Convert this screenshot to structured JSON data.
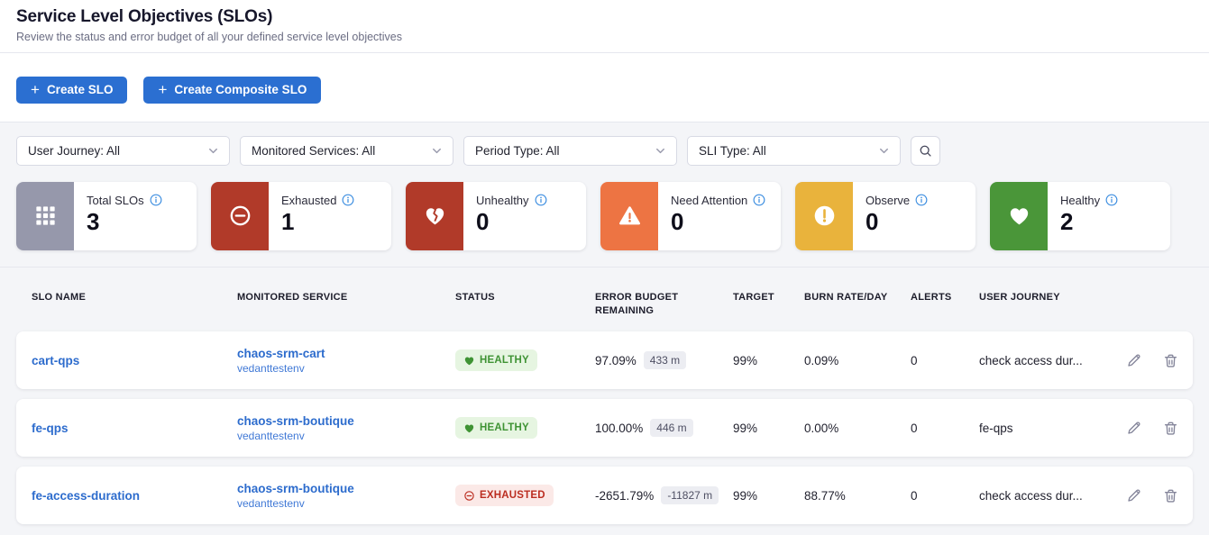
{
  "colors": {
    "primary_blue": "#2b6fd1",
    "link_blue": "#2d6ccd",
    "info_blue": "#3b8de0",
    "healthy_text": "#3f9334",
    "healthy_badge_bg": "#e6f5e1",
    "exhausted_text": "#bb2d20",
    "exhausted_badge_bg": "#fbe9e7",
    "content_bg": "#f4f5f8"
  },
  "header": {
    "title": "Service Level Objectives (SLOs)",
    "subtitle": "Review the status and error budget of all your defined service level objectives"
  },
  "toolbar": {
    "plus_glyph": "+",
    "create_slo_label": "Create SLO",
    "create_composite_slo_label": "Create Composite SLO"
  },
  "filters": [
    {
      "id": "user-journey",
      "label": "User Journey: All"
    },
    {
      "id": "monitored-services",
      "label": "Monitored Services: All"
    },
    {
      "id": "period-type",
      "label": "Period Type: All"
    },
    {
      "id": "sli-type",
      "label": "SLI Type: All"
    }
  ],
  "summary_cards": [
    {
      "id": "total-slos",
      "label": "Total SLOs",
      "value": "3",
      "icon": "grid-icon",
      "color": "#9698ab"
    },
    {
      "id": "exhausted",
      "label": "Exhausted",
      "value": "1",
      "icon": "minus-circle-icon",
      "color": "#b13a29"
    },
    {
      "id": "unhealthy",
      "label": "Unhealthy",
      "value": "0",
      "icon": "broken-heart-icon",
      "color": "#b13a29"
    },
    {
      "id": "need-attention",
      "label": "Need Attention",
      "value": "0",
      "icon": "warning-triangle-icon",
      "color": "#ed7443"
    },
    {
      "id": "observe",
      "label": "Observe",
      "value": "0",
      "icon": "exclamation-circle-icon",
      "color": "#e9b33c"
    },
    {
      "id": "healthy",
      "label": "Healthy",
      "value": "2",
      "icon": "heart-icon",
      "color": "#4a9639"
    }
  ],
  "table": {
    "columns": [
      {
        "id": "slo-name",
        "label": "SLO NAME"
      },
      {
        "id": "monitored-service",
        "label": "MONITORED SERVICE"
      },
      {
        "id": "status",
        "label": "STATUS"
      },
      {
        "id": "error-budget-remaining",
        "label": "ERROR BUDGET REMAINING"
      },
      {
        "id": "target",
        "label": "TARGET"
      },
      {
        "id": "burn-rate",
        "label": "BURN RATE/DAY"
      },
      {
        "id": "alerts",
        "label": "ALERTS"
      },
      {
        "id": "user-journey",
        "label": "USER JOURNEY"
      }
    ],
    "rows": [
      {
        "name": "cart-qps",
        "service": "chaos-srm-cart",
        "environment": "vedanttestenv",
        "status": "HEALTHY",
        "status_icon": "heart-icon",
        "error_budget_pct": "97.09%",
        "error_budget_minutes": "433 m",
        "target": "99%",
        "burn_rate_per_day": "0.09%",
        "alerts": "0",
        "user_journey": "check access dur..."
      },
      {
        "name": "fe-qps",
        "service": "chaos-srm-boutique",
        "environment": "vedanttestenv",
        "status": "HEALTHY",
        "status_icon": "heart-icon",
        "error_budget_pct": "100.00%",
        "error_budget_minutes": "446 m",
        "target": "99%",
        "burn_rate_per_day": "0.00%",
        "alerts": "0",
        "user_journey": "fe-qps"
      },
      {
        "name": "fe-access-duration",
        "service": "chaos-srm-boutique",
        "environment": "vedanttestenv",
        "status": "EXHAUSTED",
        "status_icon": "minus-circle-icon",
        "error_budget_pct": "-2651.79%",
        "error_budget_minutes": "-11827 m",
        "target": "99%",
        "burn_rate_per_day": "88.77%",
        "alerts": "0",
        "user_journey": "check access dur..."
      }
    ]
  }
}
